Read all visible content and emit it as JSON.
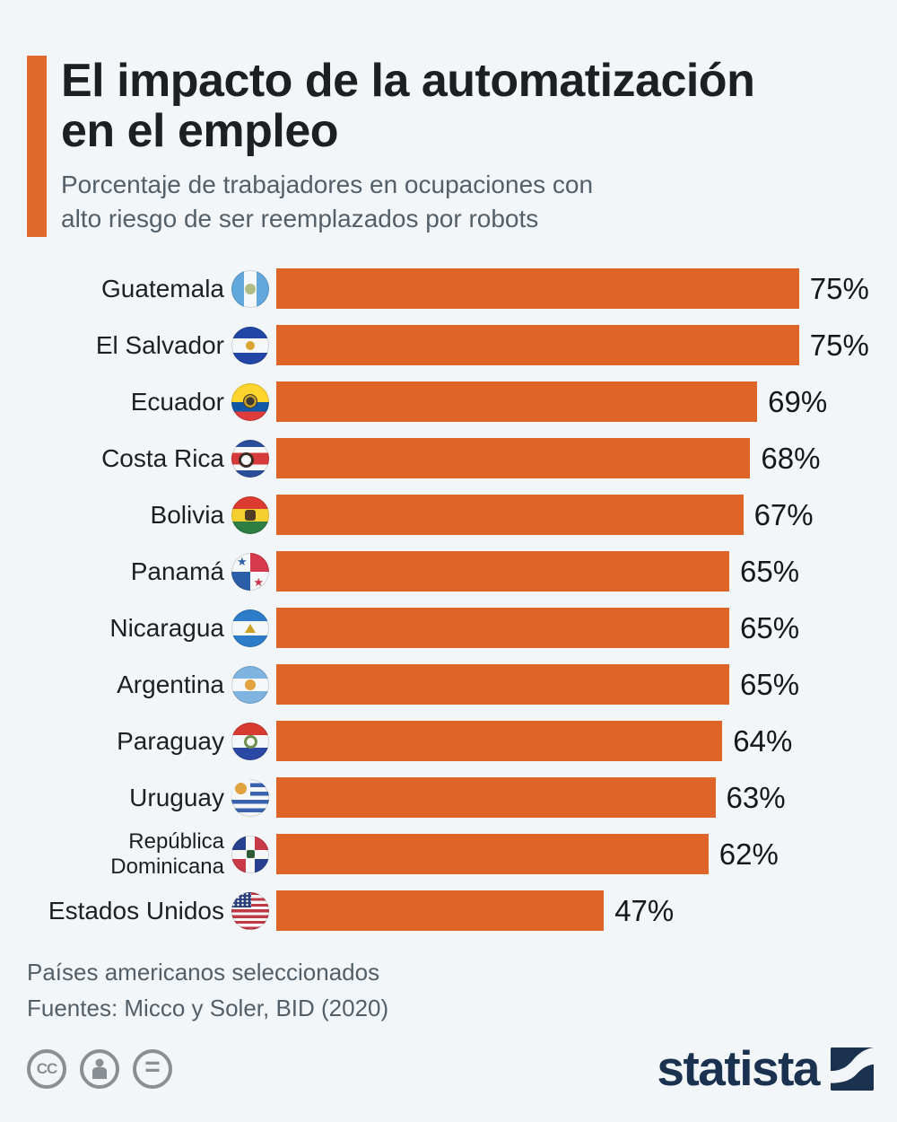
{
  "header": {
    "title_lines": [
      "El impacto de la automatización",
      "en el empleo"
    ],
    "subtitle_lines": [
      "Porcentaje de trabajadores en ocupaciones con",
      "alto riesgo de ser reemplazados por robots"
    ]
  },
  "chart_data": {
    "type": "bar",
    "orientation": "horizontal",
    "unit": "%",
    "title": "El impacto de la automatización en el empleo",
    "subtitle": "Porcentaje de trabajadores en ocupaciones con alto riesgo de ser reemplazados por robots",
    "categories": [
      "Guatemala",
      "El Salvador",
      "Ecuador",
      "Costa Rica",
      "Bolivia",
      "Panamá",
      "Nicaragua",
      "Argentina",
      "Paraguay",
      "Uruguay",
      "República Dominicana",
      "Estados Unidos"
    ],
    "values": [
      75,
      75,
      69,
      68,
      67,
      65,
      65,
      65,
      64,
      63,
      62,
      47
    ],
    "value_labels": [
      "75%",
      "75%",
      "69%",
      "68%",
      "67%",
      "65%",
      "65%",
      "65%",
      "64%",
      "63%",
      "62%",
      "47%"
    ],
    "flag_icons": [
      "guatemala-flag-icon",
      "el-salvador-flag-icon",
      "ecuador-flag-icon",
      "costa-rica-flag-icon",
      "bolivia-flag-icon",
      "panama-flag-icon",
      "nicaragua-flag-icon",
      "argentina-flag-icon",
      "paraguay-flag-icon",
      "uruguay-flag-icon",
      "dominican-republic-flag-icon",
      "usa-flag-icon"
    ],
    "xlim": [
      0,
      77
    ],
    "grid": false,
    "legend": "none",
    "value_label_position": "outside-end",
    "bar_color": "#DE6428"
  },
  "footer": {
    "note": "Países americanos seleccionados",
    "source": "Fuentes: Micco y Soler, BID (2020)"
  },
  "branding": {
    "logo_text": "statista",
    "cc_label": "CC",
    "nd_label": "=",
    "license_icons": [
      "cc-icon",
      "attribution-person-icon",
      "no-derivatives-equals-icon"
    ]
  },
  "colors": {
    "background": "#F2F6F9",
    "accent_bar": "#E06A2B",
    "bar": "#DE6428",
    "title_text": "#1D1F21",
    "subtitle_text": "#555F68",
    "logo_navy": "#1A3150",
    "license_gray": "#8A8F94"
  }
}
